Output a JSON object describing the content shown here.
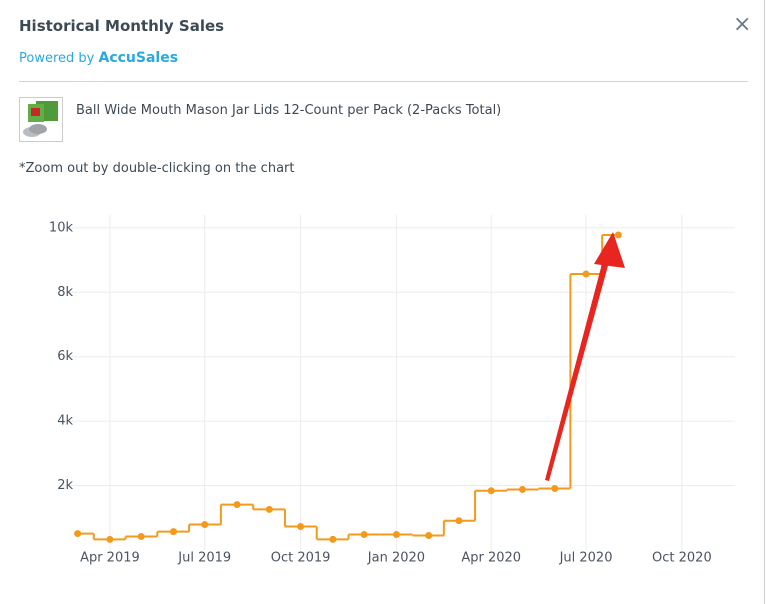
{
  "header": {
    "title": "Historical Monthly Sales",
    "powered_by": "Powered by",
    "brand": "AccuSales",
    "close": "×"
  },
  "product": {
    "title": "Ball Wide Mouth Mason Jar Lids 12-Count per Pack (2-Packs Total)"
  },
  "note": "*Zoom out by double-clicking on the chart",
  "chart_data": {
    "type": "step-line",
    "x": [
      "2019-03",
      "2019-04",
      "2019-05",
      "2019-06",
      "2019-07",
      "2019-08",
      "2019-09",
      "2019-10",
      "2019-11",
      "2019-12",
      "2020-01",
      "2020-02",
      "2020-03",
      "2020-04",
      "2020-05",
      "2020-06",
      "2020-07",
      "2020-08"
    ],
    "values": [
      510,
      330,
      420,
      570,
      790,
      1410,
      1260,
      730,
      330,
      480,
      480,
      450,
      910,
      1840,
      1880,
      1910,
      8570,
      9780
    ],
    "color": "#f39a1e",
    "xlim": [
      "2019-02-14",
      "2020-11-21"
    ],
    "xticks": [
      {
        "value": "2019-04",
        "label": "Apr 2019"
      },
      {
        "value": "2019-07",
        "label": "Jul 2019"
      },
      {
        "value": "2019-10",
        "label": "Oct 2019"
      },
      {
        "value": "2020-01",
        "label": "Jan 2020"
      },
      {
        "value": "2020-04",
        "label": "Apr 2020"
      },
      {
        "value": "2020-07",
        "label": "Jul 2020"
      },
      {
        "value": "2020-10",
        "label": "Oct 2020"
      }
    ],
    "ylim": [
      0,
      10400
    ],
    "yticks": [
      {
        "value": 2000,
        "label": "2k"
      },
      {
        "value": 4000,
        "label": "4k"
      },
      {
        "value": 6000,
        "label": "6k"
      },
      {
        "value": 8000,
        "label": "8k"
      },
      {
        "value": 10000,
        "label": "10k"
      }
    ],
    "grid": true
  }
}
